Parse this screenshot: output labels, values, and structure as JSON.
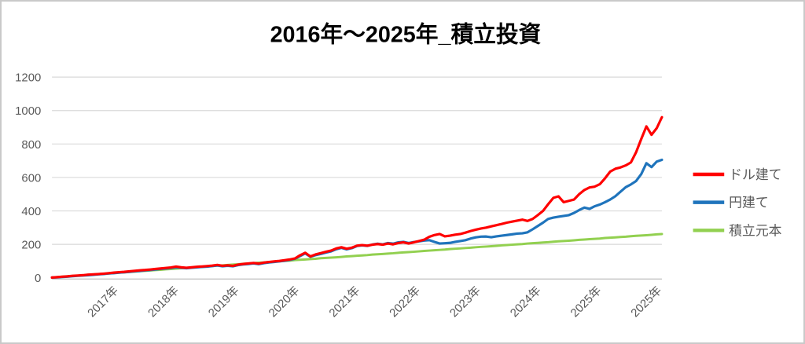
{
  "image": {
    "background": "#FFFFFF",
    "border_color": "#C9C9C9"
  },
  "chart_data": {
    "type": "line",
    "title": "2016年～2025年_積立投資",
    "title_color": "#000000",
    "grid": "horizontal",
    "grid_color": "#D9D9D9",
    "axis_line_color": "#BFBFBF",
    "tick_label_color": "#595959",
    "x_axis": {
      "tick_labels": [
        "2017年",
        "2018年",
        "2019年",
        "2020年",
        "2021年",
        "2022年",
        "2023年",
        "2024年",
        "2025年",
        "2025年"
      ],
      "label_rotation_deg": -45,
      "start_year_from_title": 2016,
      "points_per_series": 119
    },
    "y_axis": {
      "ticks": [
        0,
        200,
        400,
        600,
        800,
        1000,
        1200
      ],
      "min": 0,
      "max": 1200
    },
    "legend": {
      "position": "right",
      "items": [
        {
          "label": "ドル建て",
          "color": "#FF0000"
        },
        {
          "label": "円建て",
          "color": "#1F74BC"
        },
        {
          "label": "積立元本",
          "color": "#92D050"
        }
      ]
    },
    "series": [
      {
        "name": "ドル建て",
        "color": "#FF0000",
        "values": [
          2,
          4,
          7,
          9,
          12,
          14,
          16,
          19,
          21,
          23,
          25,
          28,
          31,
          34,
          36,
          39,
          42,
          45,
          47,
          50,
          53,
          56,
          59,
          62,
          67,
          63,
          60,
          63,
          66,
          68,
          70,
          73,
          77,
          72,
          75,
          71,
          79,
          83,
          86,
          89,
          85,
          91,
          95,
          98,
          101,
          105,
          110,
          116,
          135,
          150,
          128,
          140,
          148,
          156,
          163,
          176,
          183,
          174,
          180,
          192,
          196,
          192,
          198,
          202,
          198,
          205,
          200,
          208,
          212,
          205,
          212,
          220,
          228,
          245,
          256,
          262,
          248,
          252,
          258,
          262,
          270,
          280,
          288,
          295,
          300,
          308,
          315,
          322,
          330,
          336,
          342,
          348,
          340,
          352,
          375,
          400,
          440,
          478,
          487,
          452,
          460,
          468,
          500,
          525,
          540,
          545,
          560,
          595,
          635,
          652,
          660,
          672,
          690,
          750,
          830,
          905,
          855,
          895,
          960
        ]
      },
      {
        "name": "円建て",
        "color": "#1F74BC",
        "values": [
          2,
          3,
          5,
          7,
          10,
          12,
          14,
          16,
          18,
          21,
          23,
          26,
          28,
          31,
          33,
          36,
          39,
          41,
          44,
          47,
          50,
          53,
          56,
          59,
          63,
          60,
          57,
          60,
          63,
          65,
          67,
          70,
          74,
          69,
          72,
          69,
          76,
          80,
          83,
          86,
          82,
          88,
          92,
          95,
          98,
          102,
          107,
          114,
          130,
          146,
          126,
          136,
          143,
          151,
          158,
          171,
          179,
          170,
          177,
          190,
          194,
          191,
          199,
          204,
          200,
          208,
          204,
          212,
          215,
          208,
          214,
          218,
          223,
          225,
          215,
          205,
          207,
          209,
          215,
          220,
          225,
          235,
          242,
          246,
          247,
          243,
          248,
          252,
          256,
          260,
          264,
          266,
          272,
          290,
          310,
          330,
          352,
          360,
          365,
          370,
          375,
          388,
          405,
          420,
          412,
          428,
          438,
          452,
          468,
          488,
          515,
          542,
          558,
          578,
          620,
          685,
          662,
          695,
          705
        ]
      },
      {
        "name": "積立元本",
        "color": "#92D050",
        "values": [
          2,
          4,
          7,
          9,
          11,
          13,
          15,
          18,
          20,
          22,
          24,
          26,
          29,
          31,
          33,
          35,
          37,
          40,
          42,
          44,
          46,
          48,
          51,
          53,
          55,
          57,
          59,
          62,
          64,
          66,
          68,
          70,
          73,
          75,
          77,
          79,
          81,
          84,
          86,
          88,
          90,
          92,
          95,
          97,
          99,
          101,
          103,
          106,
          108,
          110,
          112,
          114,
          117,
          119,
          121,
          123,
          125,
          128,
          130,
          132,
          134,
          136,
          139,
          141,
          143,
          145,
          147,
          150,
          152,
          154,
          156,
          158,
          161,
          163,
          165,
          167,
          169,
          172,
          174,
          176,
          178,
          180,
          183,
          185,
          187,
          189,
          191,
          194,
          196,
          198,
          200,
          202,
          205,
          207,
          209,
          211,
          213,
          216,
          218,
          220,
          222,
          224,
          227,
          229,
          231,
          233,
          235,
          238,
          240,
          242,
          244,
          246,
          249,
          251,
          253,
          255,
          257,
          260,
          262
        ]
      }
    ]
  }
}
